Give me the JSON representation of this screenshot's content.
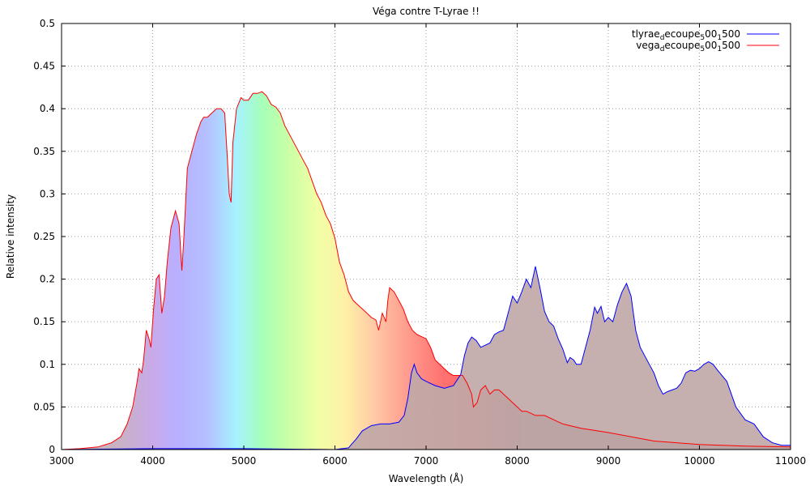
{
  "chart_data": {
    "type": "area",
    "title": "Véga contre T-Lyrae !!",
    "xlabel": "Wavelength (Å)",
    "ylabel": "Relative intensity",
    "xlim": [
      3000,
      11000
    ],
    "ylim": [
      0,
      0.5
    ],
    "grid": true,
    "legend_position": "top-right",
    "x_ticks": [
      "3000",
      "4000",
      "5000",
      "6000",
      "7000",
      "8000",
      "9000",
      "10000",
      "11000"
    ],
    "y_ticks": [
      "0",
      "0.05",
      "0.1",
      "0.15",
      "0.2",
      "0.25",
      "0.3",
      "0.35",
      "0.4",
      "0.45",
      "0.5"
    ],
    "series": [
      {
        "name": "tlyrae_decoupe_500_1500",
        "legend": {
          "base": "tlyrae",
          "sub1": "d",
          "mid1": "ecoupe",
          "sub2": "5",
          "mid2": "00",
          "sub3": "1",
          "mid3": "500"
        },
        "color": "#0000ff",
        "points": [
          [
            3000,
            0.0
          ],
          [
            4000,
            0.001
          ],
          [
            5000,
            0.001
          ],
          [
            6000,
            0.0
          ],
          [
            6150,
            0.002
          ],
          [
            6180,
            0.006
          ],
          [
            6230,
            0.012
          ],
          [
            6300,
            0.022
          ],
          [
            6400,
            0.028
          ],
          [
            6500,
            0.03
          ],
          [
            6600,
            0.03
          ],
          [
            6700,
            0.032
          ],
          [
            6760,
            0.04
          ],
          [
            6800,
            0.06
          ],
          [
            6840,
            0.09
          ],
          [
            6870,
            0.1
          ],
          [
            6900,
            0.09
          ],
          [
            6950,
            0.083
          ],
          [
            7000,
            0.08
          ],
          [
            7100,
            0.075
          ],
          [
            7200,
            0.072
          ],
          [
            7300,
            0.075
          ],
          [
            7380,
            0.088
          ],
          [
            7420,
            0.11
          ],
          [
            7460,
            0.125
          ],
          [
            7500,
            0.132
          ],
          [
            7550,
            0.128
          ],
          [
            7600,
            0.12
          ],
          [
            7700,
            0.125
          ],
          [
            7750,
            0.135
          ],
          [
            7800,
            0.138
          ],
          [
            7850,
            0.14
          ],
          [
            7900,
            0.16
          ],
          [
            7950,
            0.18
          ],
          [
            8000,
            0.172
          ],
          [
            8050,
            0.185
          ],
          [
            8100,
            0.2
          ],
          [
            8150,
            0.19
          ],
          [
            8200,
            0.215
          ],
          [
            8250,
            0.19
          ],
          [
            8300,
            0.162
          ],
          [
            8350,
            0.15
          ],
          [
            8400,
            0.145
          ],
          [
            8450,
            0.13
          ],
          [
            8500,
            0.118
          ],
          [
            8550,
            0.102
          ],
          [
            8580,
            0.108
          ],
          [
            8620,
            0.105
          ],
          [
            8650,
            0.1
          ],
          [
            8700,
            0.1
          ],
          [
            8750,
            0.12
          ],
          [
            8800,
            0.14
          ],
          [
            8850,
            0.167
          ],
          [
            8880,
            0.16
          ],
          [
            8920,
            0.168
          ],
          [
            8960,
            0.15
          ],
          [
            9000,
            0.155
          ],
          [
            9050,
            0.15
          ],
          [
            9100,
            0.17
          ],
          [
            9150,
            0.185
          ],
          [
            9200,
            0.195
          ],
          [
            9250,
            0.18
          ],
          [
            9300,
            0.14
          ],
          [
            9350,
            0.12
          ],
          [
            9400,
            0.11
          ],
          [
            9450,
            0.1
          ],
          [
            9500,
            0.09
          ],
          [
            9550,
            0.075
          ],
          [
            9600,
            0.065
          ],
          [
            9650,
            0.068
          ],
          [
            9700,
            0.07
          ],
          [
            9750,
            0.072
          ],
          [
            9800,
            0.078
          ],
          [
            9850,
            0.09
          ],
          [
            9900,
            0.093
          ],
          [
            9950,
            0.092
          ],
          [
            10000,
            0.095
          ],
          [
            10050,
            0.1
          ],
          [
            10100,
            0.103
          ],
          [
            10150,
            0.1
          ],
          [
            10200,
            0.093
          ],
          [
            10300,
            0.08
          ],
          [
            10400,
            0.05
          ],
          [
            10500,
            0.035
          ],
          [
            10600,
            0.03
          ],
          [
            10700,
            0.015
          ],
          [
            10800,
            0.008
          ],
          [
            10900,
            0.005
          ],
          [
            11000,
            0.005
          ]
        ]
      },
      {
        "name": "vega_decoupe_500_1500",
        "legend": {
          "base": "vega",
          "sub1": "d",
          "mid1": "ecoupe",
          "sub2": "5",
          "mid2": "00",
          "sub3": "1",
          "mid3": "500"
        },
        "color": "#ff0000",
        "points": [
          [
            3000,
            0.0
          ],
          [
            3200,
            0.001
          ],
          [
            3400,
            0.003
          ],
          [
            3550,
            0.008
          ],
          [
            3650,
            0.015
          ],
          [
            3720,
            0.03
          ],
          [
            3780,
            0.05
          ],
          [
            3830,
            0.08
          ],
          [
            3850,
            0.095
          ],
          [
            3880,
            0.09
          ],
          [
            3900,
            0.105
          ],
          [
            3930,
            0.14
          ],
          [
            3960,
            0.13
          ],
          [
            3980,
            0.12
          ],
          [
            4010,
            0.165
          ],
          [
            4040,
            0.2
          ],
          [
            4070,
            0.205
          ],
          [
            4100,
            0.16
          ],
          [
            4130,
            0.18
          ],
          [
            4160,
            0.22
          ],
          [
            4200,
            0.26
          ],
          [
            4250,
            0.28
          ],
          [
            4290,
            0.265
          ],
          [
            4320,
            0.21
          ],
          [
            4340,
            0.245
          ],
          [
            4380,
            0.33
          ],
          [
            4430,
            0.35
          ],
          [
            4480,
            0.37
          ],
          [
            4530,
            0.385
          ],
          [
            4560,
            0.39
          ],
          [
            4600,
            0.39
          ],
          [
            4650,
            0.395
          ],
          [
            4700,
            0.4
          ],
          [
            4750,
            0.4
          ],
          [
            4790,
            0.395
          ],
          [
            4820,
            0.34
          ],
          [
            4840,
            0.3
          ],
          [
            4860,
            0.29
          ],
          [
            4880,
            0.36
          ],
          [
            4920,
            0.4
          ],
          [
            4970,
            0.413
          ],
          [
            5000,
            0.41
          ],
          [
            5050,
            0.41
          ],
          [
            5100,
            0.418
          ],
          [
            5150,
            0.418
          ],
          [
            5200,
            0.42
          ],
          [
            5250,
            0.415
          ],
          [
            5300,
            0.405
          ],
          [
            5350,
            0.402
          ],
          [
            5400,
            0.395
          ],
          [
            5450,
            0.38
          ],
          [
            5500,
            0.37
          ],
          [
            5550,
            0.36
          ],
          [
            5600,
            0.35
          ],
          [
            5650,
            0.34
          ],
          [
            5700,
            0.33
          ],
          [
            5750,
            0.315
          ],
          [
            5800,
            0.3
          ],
          [
            5850,
            0.29
          ],
          [
            5900,
            0.275
          ],
          [
            5950,
            0.265
          ],
          [
            6000,
            0.248
          ],
          [
            6050,
            0.22
          ],
          [
            6100,
            0.205
          ],
          [
            6150,
            0.185
          ],
          [
            6200,
            0.175
          ],
          [
            6250,
            0.17
          ],
          [
            6300,
            0.165
          ],
          [
            6400,
            0.155
          ],
          [
            6450,
            0.152
          ],
          [
            6480,
            0.14
          ],
          [
            6520,
            0.16
          ],
          [
            6560,
            0.15
          ],
          [
            6580,
            0.175
          ],
          [
            6600,
            0.19
          ],
          [
            6650,
            0.185
          ],
          [
            6700,
            0.175
          ],
          [
            6750,
            0.165
          ],
          [
            6800,
            0.15
          ],
          [
            6850,
            0.14
          ],
          [
            6900,
            0.135
          ],
          [
            7000,
            0.13
          ],
          [
            7050,
            0.12
          ],
          [
            7100,
            0.105
          ],
          [
            7150,
            0.1
          ],
          [
            7200,
            0.095
          ],
          [
            7250,
            0.09
          ],
          [
            7300,
            0.087
          ],
          [
            7400,
            0.087
          ],
          [
            7450,
            0.078
          ],
          [
            7500,
            0.065
          ],
          [
            7520,
            0.05
          ],
          [
            7560,
            0.055
          ],
          [
            7600,
            0.07
          ],
          [
            7650,
            0.075
          ],
          [
            7700,
            0.065
          ],
          [
            7750,
            0.07
          ],
          [
            7800,
            0.07
          ],
          [
            7900,
            0.06
          ],
          [
            8000,
            0.05
          ],
          [
            8050,
            0.045
          ],
          [
            8100,
            0.045
          ],
          [
            8200,
            0.04
          ],
          [
            8300,
            0.04
          ],
          [
            8400,
            0.035
          ],
          [
            8500,
            0.03
          ],
          [
            8700,
            0.025
          ],
          [
            9000,
            0.02
          ],
          [
            9500,
            0.01
          ],
          [
            10000,
            0.006
          ],
          [
            10500,
            0.004
          ],
          [
            11000,
            0.003
          ]
        ]
      }
    ]
  }
}
